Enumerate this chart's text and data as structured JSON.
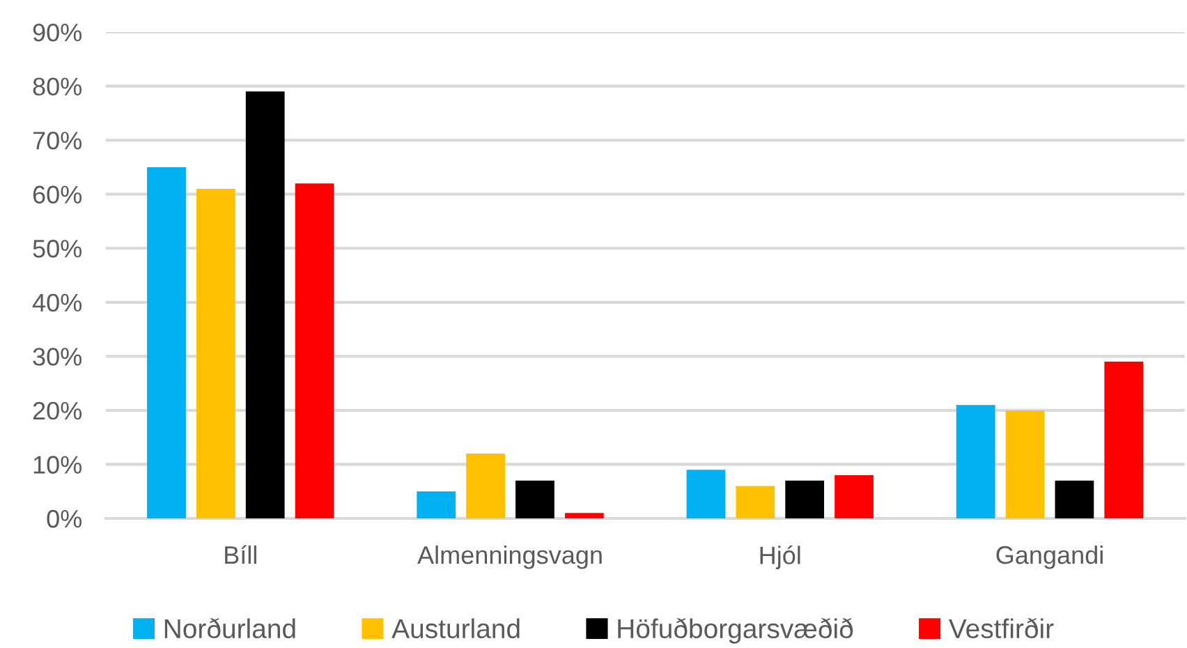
{
  "chart_data": {
    "type": "bar",
    "categories": [
      "Bíll",
      "Almenningsvagn",
      "Hjól",
      "Gangandi"
    ],
    "series": [
      {
        "name": "Norðurland",
        "color": "#00b0f0",
        "values": [
          65,
          5,
          9,
          21
        ]
      },
      {
        "name": "Austurland",
        "color": "#ffc000",
        "values": [
          61,
          12,
          6,
          20
        ]
      },
      {
        "name": "Höfuðborgarsvæðið",
        "color": "#000000",
        "values": [
          79,
          7,
          7,
          7
        ]
      },
      {
        "name": "Vestfirðir",
        "color": "#ff0000",
        "values": [
          62,
          1,
          8,
          29
        ]
      }
    ],
    "ylim": [
      0,
      90
    ],
    "yticks": [
      {
        "value": 0,
        "label": "0%"
      },
      {
        "value": 10,
        "label": "10%"
      },
      {
        "value": 20,
        "label": "20%"
      },
      {
        "value": 30,
        "label": "30%"
      },
      {
        "value": 40,
        "label": "40%"
      },
      {
        "value": 50,
        "label": "50%"
      },
      {
        "value": 60,
        "label": "60%"
      },
      {
        "value": 70,
        "label": "70%"
      },
      {
        "value": 80,
        "label": "80%"
      },
      {
        "value": 90,
        "label": "90%"
      }
    ],
    "grid": "y",
    "legend": "bottom"
  }
}
